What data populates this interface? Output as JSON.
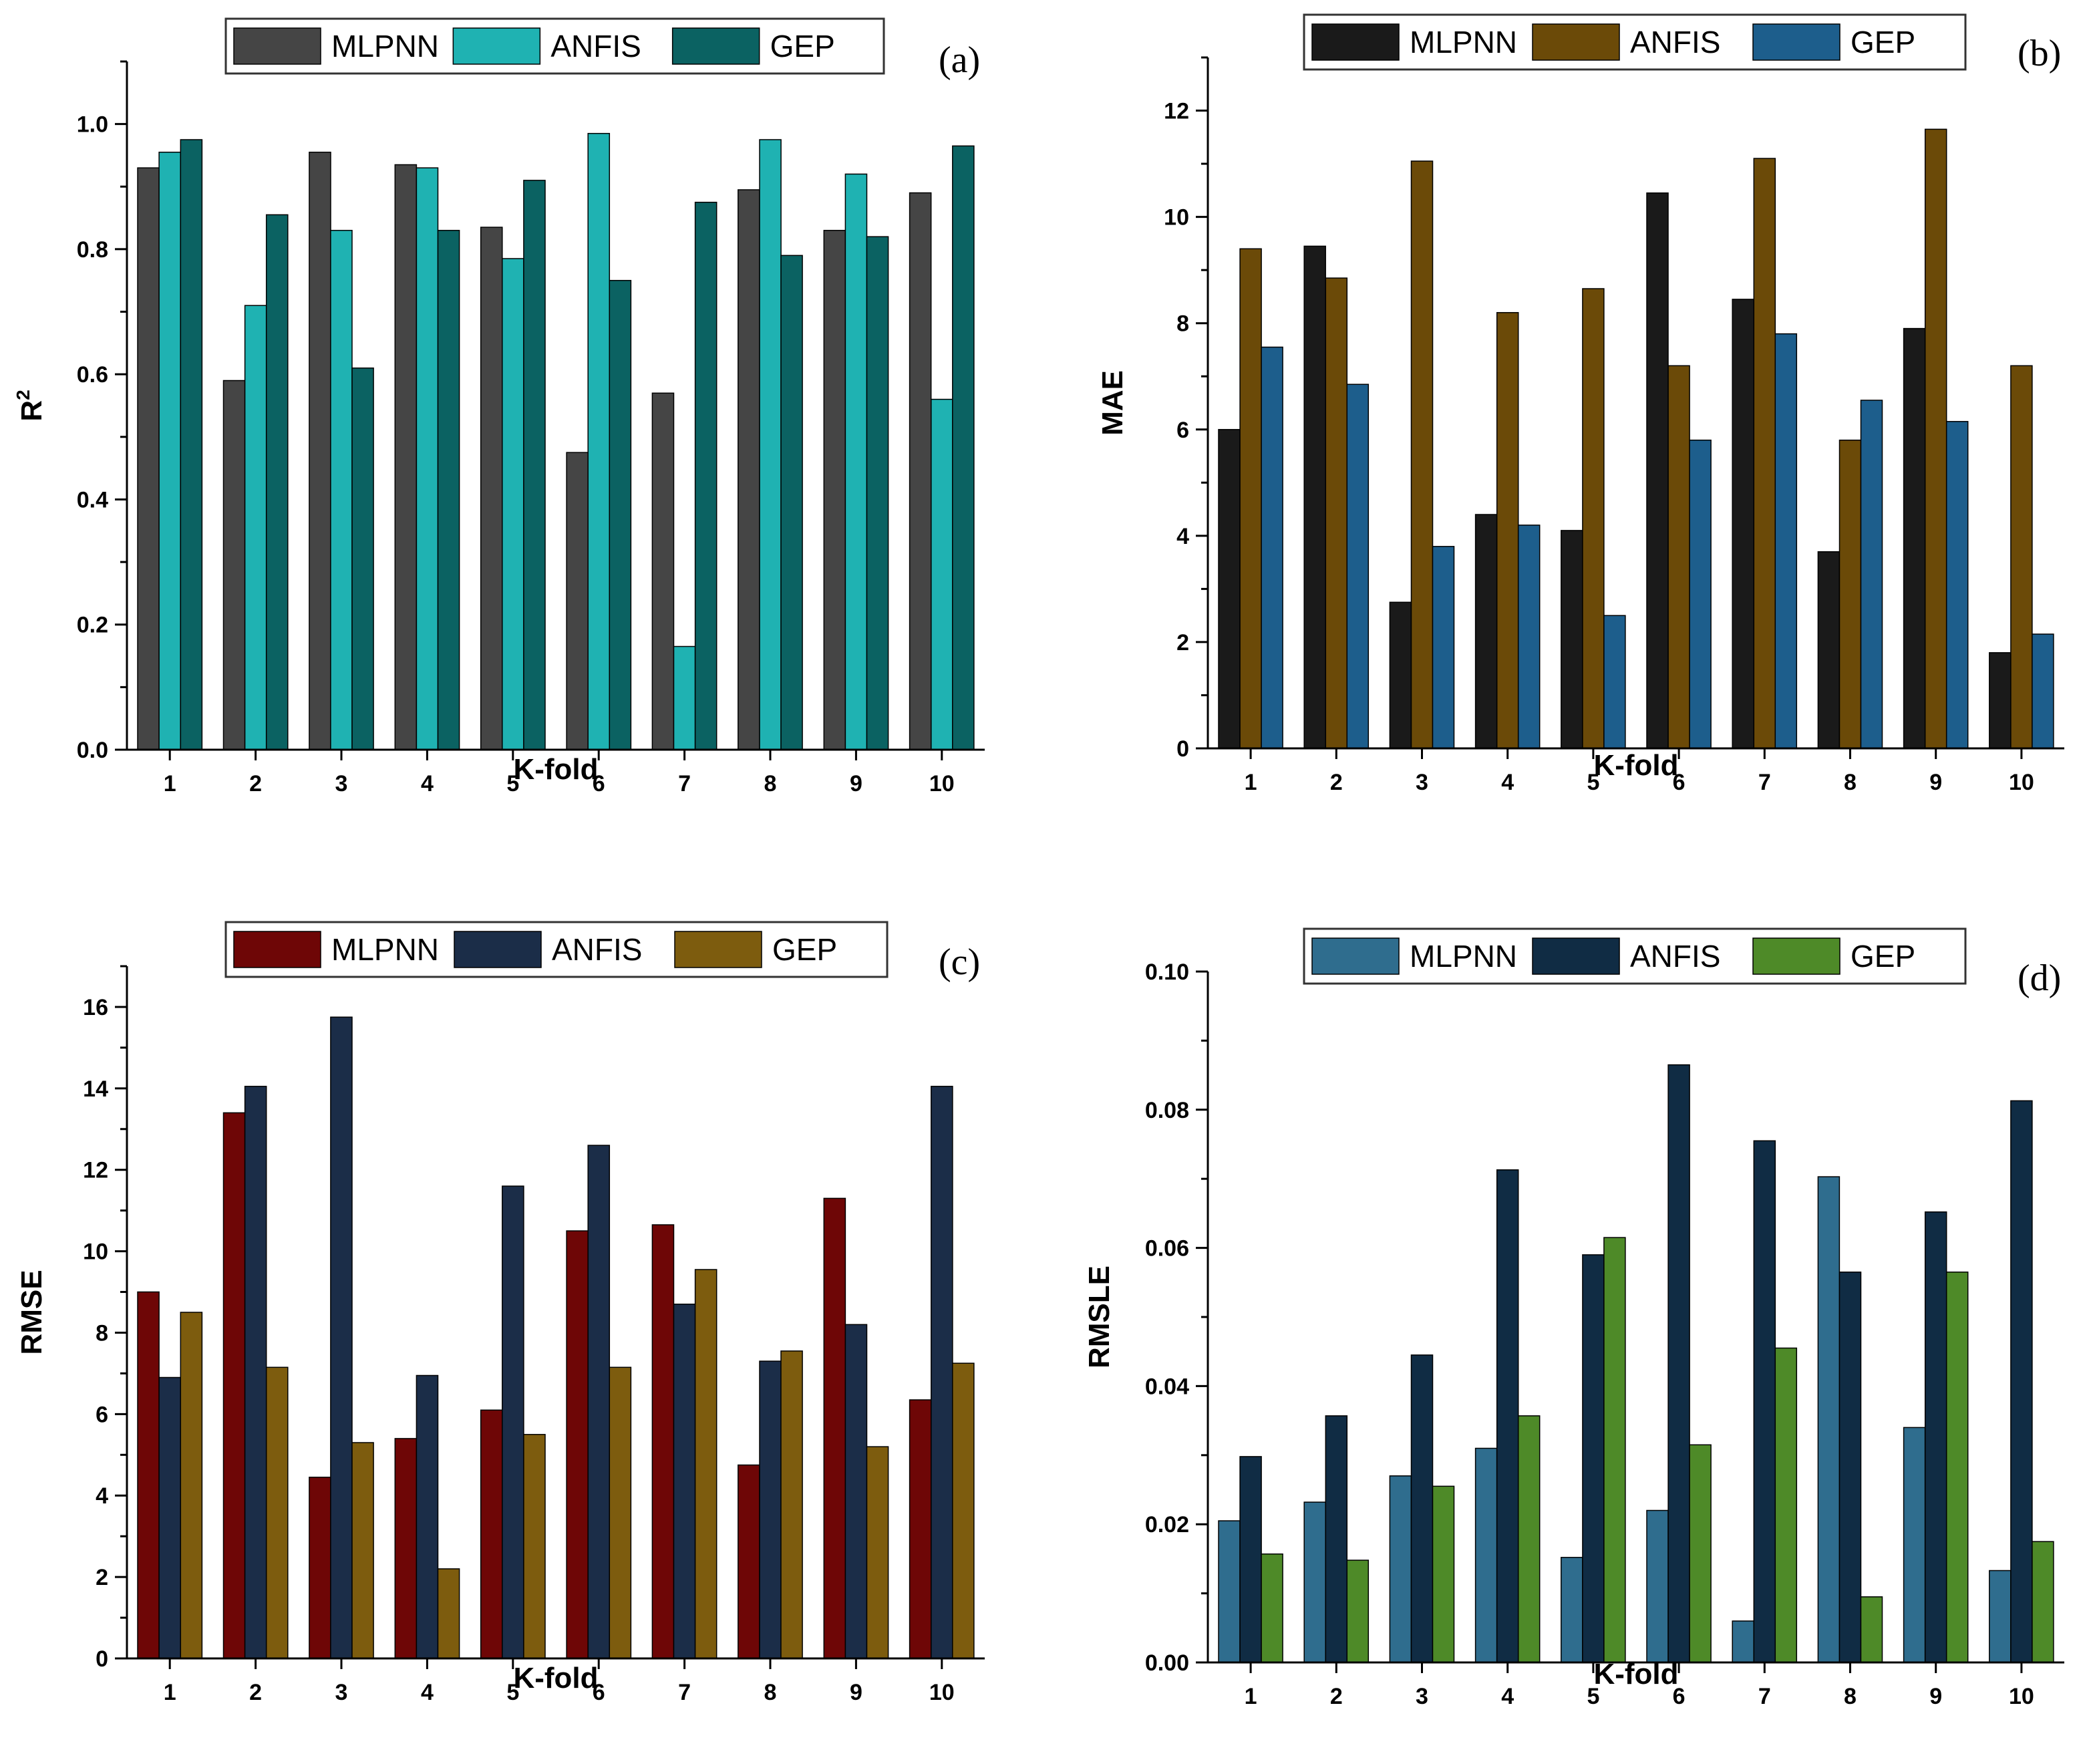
{
  "chart_data": [
    {
      "id": "a",
      "type": "bar",
      "panel_label": "(a)",
      "categories": [
        "1",
        "2",
        "3",
        "4",
        "5",
        "6",
        "7",
        "8",
        "9",
        "10"
      ],
      "xlabel": "K-fold",
      "ylabel_main": "R",
      "ylabel_sup": "2",
      "ylim": [
        0,
        1.1
      ],
      "yticks": [
        "0.0",
        "0.2",
        "0.4",
        "0.6",
        "0.8",
        "1.0"
      ],
      "ytick_values": [
        0,
        0.2,
        0.4,
        0.6,
        0.8,
        1.0
      ],
      "minor_step": 0.1,
      "legend_position": "top",
      "series": [
        {
          "name": "MLPNN",
          "color": "#454545",
          "values": [
            0.93,
            0.59,
            0.955,
            0.935,
            0.835,
            0.475,
            0.57,
            0.895,
            0.83,
            0.89
          ]
        },
        {
          "name": "ANFIS",
          "color": "#1fb2b2",
          "values": [
            0.955,
            0.71,
            0.83,
            0.93,
            0.785,
            0.985,
            0.165,
            0.975,
            0.92,
            0.56
          ]
        },
        {
          "name": "GEP",
          "color": "#0b6262",
          "values": [
            0.975,
            0.855,
            0.61,
            0.83,
            0.91,
            0.75,
            0.875,
            0.79,
            0.82,
            0.965
          ]
        }
      ]
    },
    {
      "id": "b",
      "type": "bar",
      "panel_label": "(b)",
      "categories": [
        "1",
        "2",
        "3",
        "4",
        "5",
        "6",
        "7",
        "8",
        "9",
        "10"
      ],
      "xlabel": "K-fold",
      "ylabel_main": "MAE",
      "ylabel_sup": "",
      "ylim": [
        0,
        13
      ],
      "yticks": [
        "0",
        "2",
        "4",
        "6",
        "8",
        "10",
        "12"
      ],
      "ytick_values": [
        0,
        2,
        4,
        6,
        8,
        10,
        12
      ],
      "minor_step": 1,
      "legend_position": "top",
      "series": [
        {
          "name": "MLPNN",
          "color": "#1a1a1a",
          "values": [
            6.0,
            9.45,
            2.75,
            4.4,
            4.1,
            10.45,
            8.45,
            3.7,
            7.9,
            1.8
          ]
        },
        {
          "name": "ANFIS",
          "color": "#6b4a08",
          "values": [
            9.4,
            8.85,
            11.05,
            8.2,
            8.65,
            7.2,
            11.1,
            5.8,
            11.65,
            7.2
          ]
        },
        {
          "name": "GEP",
          "color": "#1d5e8c",
          "values": [
            7.55,
            6.85,
            3.8,
            4.2,
            2.5,
            5.8,
            7.8,
            6.55,
            6.15,
            2.15
          ]
        }
      ]
    },
    {
      "id": "c",
      "type": "bar",
      "panel_label": "(c)",
      "categories": [
        "1",
        "2",
        "3",
        "4",
        "5",
        "6",
        "7",
        "8",
        "9",
        "10"
      ],
      "xlabel": "K-fold",
      "ylabel_main": "RMSE",
      "ylabel_sup": "",
      "ylim": [
        0,
        17
      ],
      "yticks": [
        "0",
        "2",
        "4",
        "6",
        "8",
        "10",
        "12",
        "14",
        "16"
      ],
      "ytick_values": [
        0,
        2,
        4,
        6,
        8,
        10,
        12,
        14,
        16
      ],
      "minor_step": 1,
      "legend_position": "top",
      "series": [
        {
          "name": "MLPNN",
          "color": "#6e0606",
          "values": [
            9.0,
            13.4,
            4.45,
            5.4,
            6.1,
            10.5,
            10.65,
            4.75,
            11.3,
            6.35
          ]
        },
        {
          "name": "ANFIS",
          "color": "#1b2d48",
          "values": [
            6.9,
            14.05,
            15.75,
            6.95,
            11.6,
            12.6,
            8.7,
            7.3,
            8.2,
            14.05
          ]
        },
        {
          "name": "GEP",
          "color": "#7d5c0e",
          "values": [
            8.5,
            7.15,
            5.3,
            2.2,
            5.5,
            7.15,
            9.55,
            7.55,
            5.2,
            7.25
          ]
        }
      ]
    },
    {
      "id": "d",
      "type": "bar",
      "panel_label": "(d)",
      "categories": [
        "1",
        "2",
        "3",
        "4",
        "5",
        "6",
        "7",
        "8",
        "9",
        "10"
      ],
      "xlabel": "K-fold",
      "ylabel_main": "RMSLE",
      "ylabel_sup": "",
      "ylim": [
        0,
        0.1
      ],
      "yticks": [
        "0.00",
        "0.02",
        "0.04",
        "0.06",
        "0.08",
        "0.10"
      ],
      "ytick_values": [
        0,
        0.02,
        0.04,
        0.06,
        0.08,
        0.1
      ],
      "minor_step": 0.01,
      "legend_position": "top",
      "series": [
        {
          "name": "MLPNN",
          "color": "#2f6d8e",
          "values": [
            0.0205,
            0.0232,
            0.027,
            0.031,
            0.0152,
            0.022,
            0.006,
            0.0703,
            0.034,
            0.0133
          ]
        },
        {
          "name": "ANFIS",
          "color": "#102c44",
          "values": [
            0.0298,
            0.0357,
            0.0445,
            0.0713,
            0.059,
            0.0865,
            0.0755,
            0.0565,
            0.0652,
            0.0813
          ]
        },
        {
          "name": "GEP",
          "color": "#4e8a28",
          "values": [
            0.0157,
            0.0148,
            0.0255,
            0.0357,
            0.0615,
            0.0315,
            0.0455,
            0.0095,
            0.0565,
            0.0175
          ]
        }
      ]
    }
  ]
}
